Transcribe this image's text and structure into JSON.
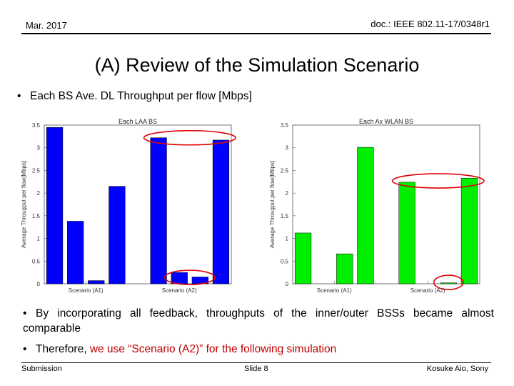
{
  "header": {
    "date": "Mar. 2017",
    "doc": "doc.: IEEE 802.11-17/0348r1"
  },
  "title": "(A) Review of the Simulation Scenario",
  "bullet1": "Each BS Ave. DL Throughput per flow [Mbps]",
  "bullet2": "By incorporating all feedback, throughputs of the inner/outer BSSs became almost comparable",
  "bullet3": {
    "prefix": "Therefore, ",
    "highlight": "we use “Scenario (A2)” for the following simulation"
  },
  "footer": {
    "left": "Submission",
    "mid": "Slide 8",
    "right": "Kosuke Aio, Sony"
  },
  "chart_data": [
    {
      "type": "bar",
      "title": "Each LAA BS",
      "ylabel": "Average Througput per flow[Mbps]",
      "ylim": [
        0,
        3.5
      ],
      "yticks": [
        "0",
        "0.5",
        "1",
        "1.5",
        "2",
        "2.5",
        "3",
        "3.5"
      ],
      "xticks": [
        "Scenario (A1)",
        "Scenario (A2)"
      ],
      "color": "#0000ff",
      "values": [
        3.45,
        1.38,
        0.07,
        2.15,
        null,
        3.22,
        0.25,
        0.15,
        3.17
      ]
    },
    {
      "type": "bar",
      "title": "Each Ax WLAN BS",
      "ylabel": "Average Througput per flow[Mbps]",
      "ylim": [
        0,
        3.5
      ],
      "yticks": [
        "0",
        "0.5",
        "1",
        "1.5",
        "2",
        "2.5",
        "3",
        "3.5"
      ],
      "xticks": [
        "Scenario (A1)",
        "Scenario (A2)"
      ],
      "color": "#00ee00",
      "values": [
        1.12,
        0,
        0.66,
        3.01,
        null,
        2.24,
        0,
        0.02,
        2.33
      ]
    }
  ]
}
